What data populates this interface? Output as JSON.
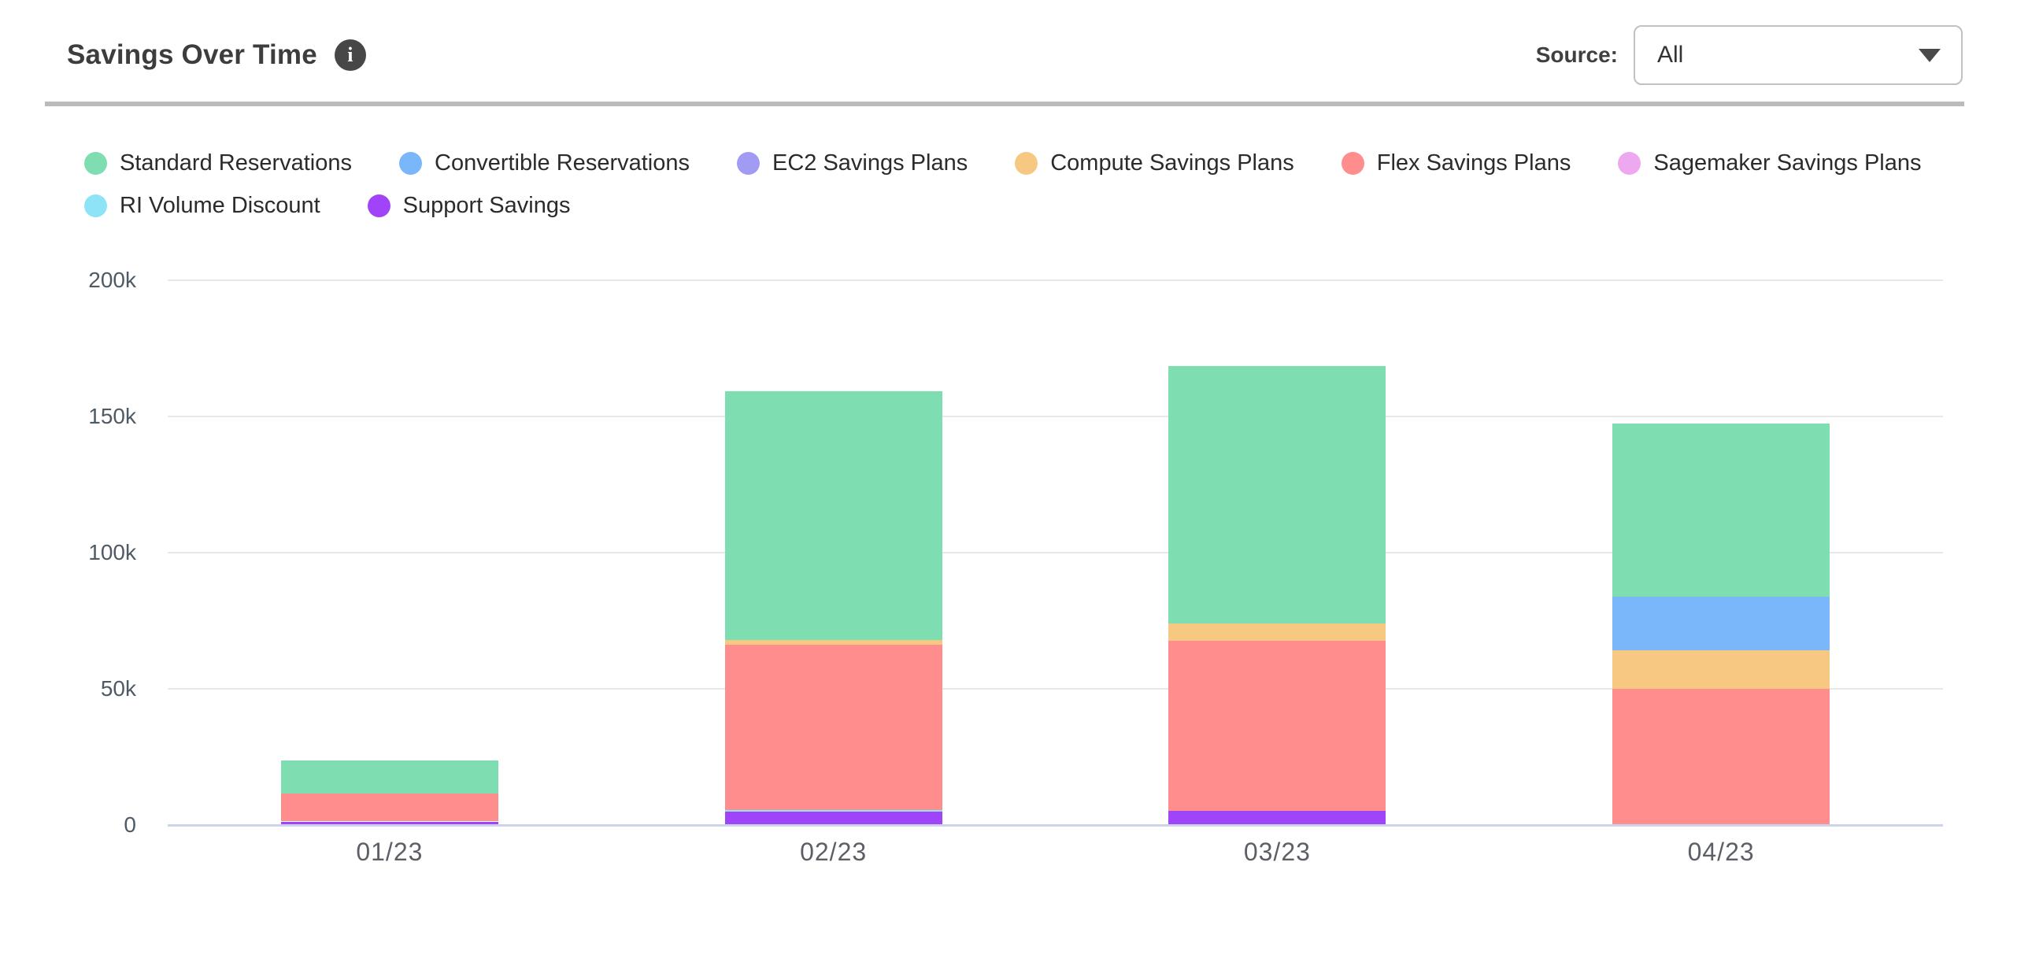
{
  "header": {
    "title": "Savings Over Time",
    "source_label": "Source:",
    "source_value": "All"
  },
  "legend": {
    "items": [
      {
        "label": "Standard Reservations",
        "color": "#7EDEB2"
      },
      {
        "label": "Convertible Reservations",
        "color": "#79B7FA"
      },
      {
        "label": "EC2 Savings Plans",
        "color": "#A29BF3"
      },
      {
        "label": "Compute Savings Plans",
        "color": "#F7C882"
      },
      {
        "label": "Flex Savings Plans",
        "color": "#FF8D8D"
      },
      {
        "label": "Sagemaker Savings Plans",
        "color": "#EEA8EF"
      },
      {
        "label": "RI Volume Discount",
        "color": "#8EE3F7"
      },
      {
        "label": "Support Savings",
        "color": "#A044FA"
      }
    ]
  },
  "chart_data": {
    "type": "bar",
    "stacked": true,
    "title": "Savings Over Time",
    "xlabel": "",
    "ylabel": "",
    "categories": [
      "01/23",
      "02/23",
      "03/23",
      "04/23"
    ],
    "series": [
      {
        "name": "Standard Reservations",
        "color": "#7EDEB2",
        "values": [
          12100,
          91200,
          94500,
          63700
        ]
      },
      {
        "name": "Convertible Reservations",
        "color": "#79B7FA",
        "values": [
          0,
          0,
          0,
          19600
        ]
      },
      {
        "name": "EC2 Savings Plans",
        "color": "#A29BF3",
        "values": [
          0,
          0,
          0,
          0
        ]
      },
      {
        "name": "Compute Savings Plans",
        "color": "#F7C882",
        "values": [
          0,
          1800,
          6300,
          14200
        ]
      },
      {
        "name": "Flex Savings Plans",
        "color": "#FF8D8D",
        "values": [
          10200,
          60700,
          62500,
          50000
        ]
      },
      {
        "name": "Sagemaker Savings Plans",
        "color": "#EEA8EF",
        "values": [
          0,
          0,
          0,
          0
        ]
      },
      {
        "name": "RI Volume Discount",
        "color": "#8EE3F7",
        "values": [
          0,
          700,
          0,
          0
        ]
      },
      {
        "name": "Support Savings",
        "color": "#A044FA",
        "values": [
          1300,
          4800,
          5200,
          0
        ]
      }
    ],
    "stack_order_bottom_to_top": [
      "Support Savings",
      "RI Volume Discount",
      "Sagemaker Savings Plans",
      "Flex Savings Plans",
      "Compute Savings Plans",
      "EC2 Savings Plans",
      "Convertible Reservations",
      "Standard Reservations"
    ],
    "ylim": [
      0,
      200000
    ],
    "yticks": [
      {
        "value": 0,
        "label": "0"
      },
      {
        "value": 50000,
        "label": "50k"
      },
      {
        "value": 100000,
        "label": "100k"
      },
      {
        "value": 150000,
        "label": "150k"
      },
      {
        "value": 200000,
        "label": "200k"
      }
    ],
    "grid": true,
    "legend_position": "top"
  },
  "colors": {
    "axis_line": "#CCD4EC",
    "gridline": "#E8E8E8",
    "divider": "#BBBBBB",
    "tick_label": "#4F5A65",
    "x_label": "#5C6066",
    "title": "#3D3D3D",
    "info_icon_bg": "#474747"
  }
}
